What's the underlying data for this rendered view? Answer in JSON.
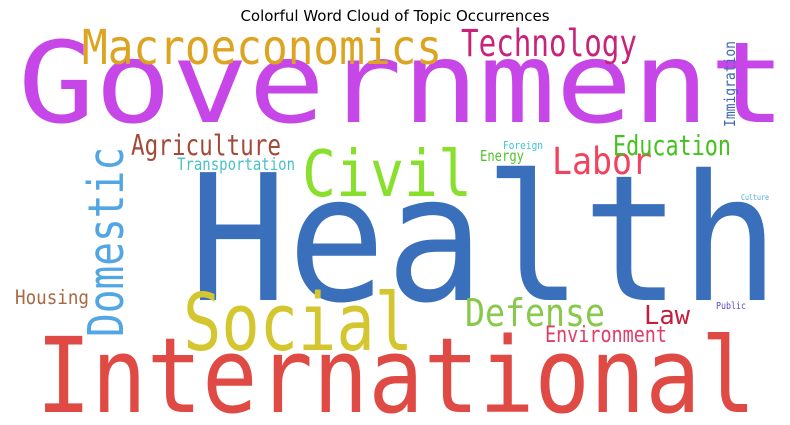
{
  "chart_data": {
    "type": "wordcloud",
    "title": "Colorful Word Cloud of Topic Occurrences",
    "words": [
      {
        "text": "Government",
        "weight": 100,
        "color": "#c646e8"
      },
      {
        "text": "Health",
        "weight": 98,
        "color": "#3a6fbc"
      },
      {
        "text": "International",
        "weight": 86,
        "color": "#e04a44"
      },
      {
        "text": "Macroeconomics",
        "weight": 36,
        "color": "#dda422"
      },
      {
        "text": "Social",
        "weight": 48,
        "color": "#d4c62e"
      },
      {
        "text": "Civil",
        "weight": 46,
        "color": "#88e02c"
      },
      {
        "text": "Domestic",
        "weight": 40,
        "color": "#52a6e4"
      },
      {
        "text": "Technology",
        "weight": 28,
        "color": "#c8237a"
      },
      {
        "text": "Labor",
        "weight": 30,
        "color": "#f1435e"
      },
      {
        "text": "Defense",
        "weight": 30,
        "color": "#88c84a"
      },
      {
        "text": "Agriculture",
        "weight": 22,
        "color": "#a24a3a"
      },
      {
        "text": "Education",
        "weight": 22,
        "color": "#46c21e"
      },
      {
        "text": "Law",
        "weight": 22,
        "color": "#c21e3e"
      },
      {
        "text": "Environment",
        "weight": 18,
        "color": "#e23c68"
      },
      {
        "text": "Housing",
        "weight": 16,
        "color": "#a86a42"
      },
      {
        "text": "Transportation",
        "weight": 13,
        "color": "#48c0c8"
      },
      {
        "text": "Energy",
        "weight": 12,
        "color": "#52c22a"
      },
      {
        "text": "Immigration",
        "weight": 11,
        "color": "#3c68b4"
      },
      {
        "text": "Foreign",
        "weight": 8,
        "color": "#3cc4d4"
      },
      {
        "text": "Public",
        "weight": 7,
        "color": "#5a4ac4"
      },
      {
        "text": "Culture",
        "weight": 5,
        "color": "#4eaad4"
      }
    ]
  }
}
